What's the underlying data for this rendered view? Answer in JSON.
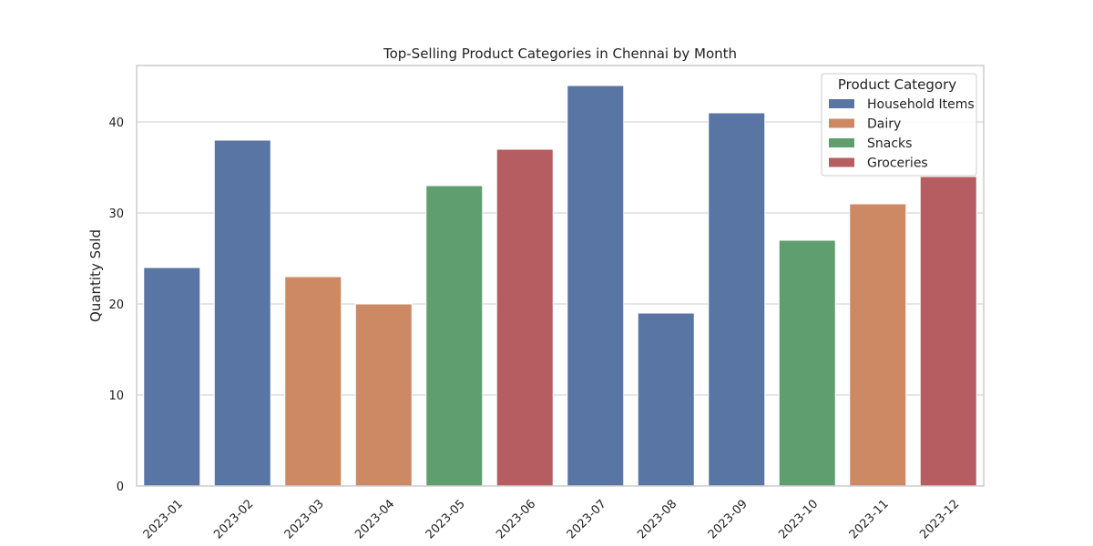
{
  "chart_data": {
    "type": "bar",
    "title": "Top-Selling Product Categories in Chennai by Month",
    "xlabel": "",
    "ylabel": "Quantity Sold",
    "ylim": [
      0,
      46.2
    ],
    "yticks": [
      0,
      10,
      20,
      30,
      40
    ],
    "grid": true,
    "legend": {
      "title": "Product Category",
      "placement": "top-right",
      "entries": [
        {
          "name": "Household Items",
          "color": "#5875A4"
        },
        {
          "name": "Dairy",
          "color": "#CC8963"
        },
        {
          "name": "Snacks",
          "color": "#5F9E6E"
        },
        {
          "name": "Groceries",
          "color": "#B55D60"
        }
      ]
    },
    "categories": [
      "2023-01",
      "2023-02",
      "2023-03",
      "2023-04",
      "2023-05",
      "2023-06",
      "2023-07",
      "2023-08",
      "2023-09",
      "2023-10",
      "2023-11",
      "2023-12"
    ],
    "values": [
      24,
      38,
      23,
      20,
      33,
      37,
      44,
      19,
      41,
      27,
      31,
      34
    ],
    "bar_categories": [
      "Household Items",
      "Household Items",
      "Dairy",
      "Dairy",
      "Snacks",
      "Groceries",
      "Household Items",
      "Household Items",
      "Household Items",
      "Snacks",
      "Dairy",
      "Groceries"
    ]
  }
}
